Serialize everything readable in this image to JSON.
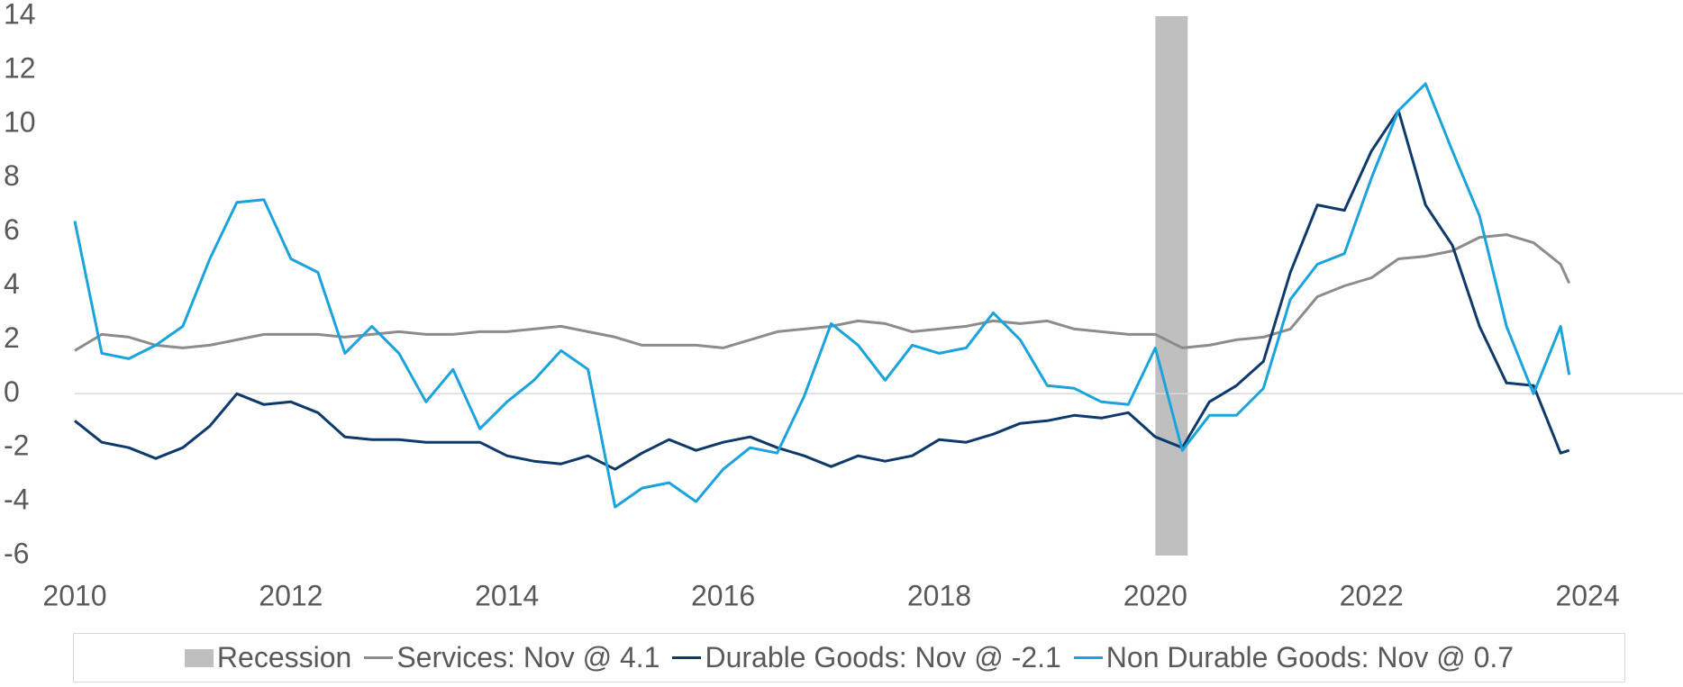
{
  "chart_data": {
    "type": "line",
    "x": [
      2010,
      2010.25,
      2010.5,
      2010.75,
      2011,
      2011.25,
      2011.5,
      2011.75,
      2012,
      2012.25,
      2012.5,
      2012.75,
      2013,
      2013.25,
      2013.5,
      2013.75,
      2014,
      2014.25,
      2014.5,
      2014.75,
      2015,
      2015.25,
      2015.5,
      2015.75,
      2016,
      2016.25,
      2016.5,
      2016.75,
      2017,
      2017.25,
      2017.5,
      2017.75,
      2018,
      2018.25,
      2018.5,
      2018.75,
      2019,
      2019.25,
      2019.5,
      2019.75,
      2020,
      2020.25,
      2020.5,
      2020.75,
      2021,
      2021.25,
      2021.5,
      2021.75,
      2022,
      2022.25,
      2022.5,
      2022.75,
      2023,
      2023.25,
      2023.5,
      2023.75,
      2023.83
    ],
    "series": [
      {
        "name": "Services: Nov @ 4.1",
        "color": "#8c8c8c",
        "values": [
          1.6,
          2.2,
          2.1,
          1.8,
          1.7,
          1.8,
          2.0,
          2.2,
          2.2,
          2.2,
          2.1,
          2.2,
          2.3,
          2.2,
          2.2,
          2.3,
          2.3,
          2.4,
          2.5,
          2.3,
          2.1,
          1.8,
          1.8,
          1.8,
          1.7,
          2.0,
          2.3,
          2.4,
          2.5,
          2.7,
          2.6,
          2.3,
          2.4,
          2.5,
          2.7,
          2.6,
          2.7,
          2.4,
          2.3,
          2.2,
          2.2,
          1.7,
          1.8,
          2.0,
          2.1,
          2.4,
          3.6,
          4.0,
          4.3,
          5.0,
          5.1,
          5.3,
          5.8,
          5.9,
          5.6,
          4.8,
          4.1
        ]
      },
      {
        "name": "Durable Goods: Nov @ -2.1",
        "color": "#0d3a6b",
        "values": [
          -1.0,
          -1.8,
          -2.0,
          -2.4,
          -2.0,
          -1.2,
          0.0,
          -0.4,
          -0.3,
          -0.7,
          -1.6,
          -1.7,
          -1.7,
          -1.8,
          -1.8,
          -1.8,
          -2.3,
          -2.5,
          -2.6,
          -2.3,
          -2.8,
          -2.2,
          -1.7,
          -2.1,
          -1.8,
          -1.6,
          -2.0,
          -2.3,
          -2.7,
          -2.3,
          -2.5,
          -2.3,
          -1.7,
          -1.8,
          -1.5,
          -1.1,
          -1.0,
          -0.8,
          -0.9,
          -0.7,
          -1.6,
          -2.0,
          -0.3,
          0.3,
          1.2,
          4.5,
          7.0,
          6.8,
          9.0,
          10.5,
          7.0,
          5.5,
          2.5,
          0.4,
          0.3,
          -2.2,
          -2.1
        ]
      },
      {
        "name": "Non Durable Goods: Nov @ 0.7",
        "color": "#1aa3dc",
        "values": [
          6.4,
          1.5,
          1.3,
          1.8,
          2.5,
          5.0,
          7.1,
          7.2,
          5.0,
          4.5,
          1.5,
          2.5,
          1.5,
          -0.3,
          0.9,
          -1.3,
          -0.3,
          0.5,
          1.6,
          0.9,
          -4.2,
          -3.5,
          -3.3,
          -4.0,
          -2.8,
          -2.0,
          -2.2,
          -0.1,
          2.6,
          1.8,
          0.5,
          1.8,
          1.5,
          1.7,
          3.0,
          2.0,
          0.3,
          0.2,
          -0.3,
          -0.4,
          1.7,
          -2.1,
          -0.8,
          -0.8,
          0.2,
          3.5,
          4.8,
          5.2,
          8.0,
          10.5,
          11.5,
          9.0,
          6.6,
          2.5,
          0.0,
          2.5,
          0.7
        ]
      }
    ],
    "recession": {
      "name": "Recession",
      "color": "#bfbfbf",
      "start": 2020.0,
      "end": 2020.3
    },
    "xlim": [
      2010,
      2024.8
    ],
    "xticks": [
      2010,
      2012,
      2014,
      2016,
      2018,
      2020,
      2022,
      2024
    ],
    "ylim": [
      -6,
      14
    ],
    "yticks": [
      -6,
      -4,
      -2,
      0,
      2,
      4,
      6,
      8,
      10,
      12,
      14
    ],
    "grid": false
  }
}
